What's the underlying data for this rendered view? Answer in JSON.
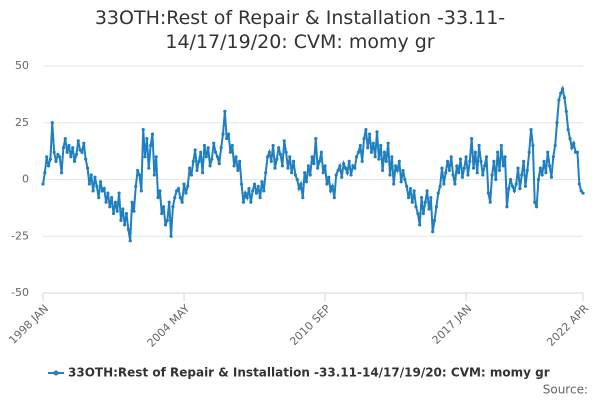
{
  "chart_data": {
    "type": "line",
    "title": "33OTH:Rest of Repair & Installation -33.11-14/17/19/20: CVM: momy gr",
    "source_label": "Source:",
    "categories": [
      "1998 JAN",
      null,
      null,
      null,
      null,
      null,
      null,
      null,
      null,
      null,
      null,
      null,
      null,
      null,
      null,
      null,
      null,
      null,
      null,
      null,
      null,
      null,
      null,
      null,
      null,
      null,
      null,
      null,
      null,
      null,
      null,
      null,
      null,
      null,
      null,
      null,
      null,
      null,
      null,
      null,
      null,
      null,
      null,
      null,
      null,
      null,
      null,
      null,
      null,
      null,
      null,
      null,
      null,
      null,
      null,
      null,
      null,
      null,
      null,
      null,
      null,
      null,
      null,
      null,
      null,
      null,
      null,
      null,
      null,
      null,
      null,
      null,
      null,
      null,
      null,
      null,
      "2004 MAY",
      null,
      null,
      null,
      null,
      null,
      null,
      null,
      null,
      null,
      null,
      null,
      null,
      null,
      null,
      null,
      null,
      null,
      null,
      null,
      null,
      null,
      null,
      null,
      null,
      null,
      null,
      null,
      null,
      null,
      null,
      null,
      null,
      null,
      null,
      null,
      null,
      null,
      null,
      null,
      null,
      null,
      null,
      null,
      null,
      null,
      null,
      null,
      null,
      null,
      null,
      null,
      null,
      null,
      null,
      null,
      null,
      null,
      null,
      null,
      null,
      null,
      null,
      null,
      null,
      null,
      null,
      null,
      null,
      null,
      null,
      null,
      null,
      null,
      null,
      null,
      "2010 SEP",
      null,
      null,
      null,
      null,
      null,
      null,
      null,
      null,
      null,
      null,
      null,
      null,
      null,
      null,
      null,
      null,
      null,
      null,
      null,
      null,
      null,
      null,
      null,
      null,
      null,
      null,
      null,
      null,
      null,
      null,
      null,
      null,
      null,
      null,
      null,
      null,
      null,
      null,
      null,
      null,
      null,
      null,
      null,
      null,
      null,
      null,
      null,
      null,
      null,
      null,
      null,
      null,
      null,
      null,
      null,
      null,
      null,
      null,
      null,
      null,
      null,
      null,
      null,
      null,
      null,
      null,
      null,
      null,
      null,
      null,
      null,
      null,
      null,
      null,
      null,
      "2017 JAN",
      null,
      null,
      null,
      null,
      null,
      null,
      null,
      null,
      null,
      null,
      null,
      null,
      null,
      null,
      null,
      null,
      null,
      null,
      null,
      null,
      null,
      null,
      null,
      null,
      null,
      null,
      null,
      null,
      null,
      null,
      null,
      null,
      null,
      null,
      null,
      null,
      null,
      null,
      null,
      null,
      null,
      null,
      null,
      null,
      null,
      null,
      null,
      null,
      null,
      null,
      null,
      null,
      null,
      null,
      null,
      null,
      null,
      null,
      null,
      null,
      null,
      null,
      "2022 APR"
    ],
    "series": [
      {
        "name": "33OTH:Rest of Repair & Installation -33.11-14/17/19/20: CVM: momy gr",
        "color": "#1f7fbf",
        "values": [
          -2,
          3,
          10,
          6,
          9,
          25,
          12,
          8,
          11,
          10,
          3,
          14,
          18,
          12,
          15,
          10,
          14,
          8,
          11,
          17,
          13,
          12,
          16,
          9,
          5,
          -2,
          2,
          -5,
          1,
          -3,
          -8,
          -1,
          -5,
          -4,
          -10,
          -6,
          -12,
          -8,
          -15,
          -10,
          -14,
          -6,
          -18,
          -13,
          -20,
          -15,
          -22,
          -27,
          -10,
          -14,
          -3,
          4,
          2,
          -5,
          22,
          10,
          18,
          5,
          15,
          20,
          2,
          10,
          -8,
          -5,
          -15,
          -12,
          -20,
          -18,
          -10,
          -25,
          -12,
          -8,
          -5,
          -4,
          -8,
          -10,
          -2,
          -6,
          -3,
          5,
          2,
          8,
          13,
          4,
          8,
          12,
          3,
          15,
          10,
          14,
          6,
          9,
          16,
          12,
          10,
          7,
          14,
          20,
          30,
          18,
          20,
          12,
          15,
          6,
          10,
          4,
          8,
          -2,
          -10,
          -6,
          -8,
          -4,
          -10,
          -5,
          -2,
          -6,
          -3,
          -8,
          -1,
          -5,
          3,
          10,
          12,
          8,
          15,
          5,
          9,
          14,
          11,
          6,
          17,
          12,
          5,
          10,
          3,
          8,
          2,
          0,
          -4,
          -2,
          -8,
          3,
          -1,
          6,
          2,
          10,
          7,
          18,
          5,
          8,
          12,
          3,
          6,
          -2,
          1,
          -5,
          -3,
          -8,
          2,
          4,
          6,
          1,
          7,
          5,
          3,
          8,
          2,
          6,
          5,
          10,
          12,
          15,
          8,
          18,
          22,
          14,
          20,
          12,
          16,
          10,
          21,
          9,
          15,
          4,
          12,
          8,
          16,
          2,
          10,
          -2,
          6,
          4,
          8,
          -1,
          4,
          0,
          -3,
          -8,
          -4,
          -10,
          -5,
          -12,
          -15,
          -20,
          -8,
          -15,
          -10,
          -5,
          -13,
          -8,
          -23,
          -18,
          -12,
          -6,
          -3,
          5,
          -2,
          3,
          8,
          4,
          10,
          2,
          -2,
          6,
          3,
          9,
          1,
          5,
          10,
          2,
          8,
          18,
          5,
          12,
          3,
          15,
          8,
          2,
          6,
          10,
          -6,
          -10,
          2,
          8,
          0,
          12,
          4,
          15,
          6,
          10,
          -12,
          -4,
          0,
          -3,
          -5,
          -2,
          5,
          -4,
          2,
          8,
          -3,
          4,
          12,
          22,
          15,
          -10,
          -12,
          0,
          5,
          2,
          8,
          3,
          12,
          6,
          1,
          10,
          15,
          25,
          35,
          38,
          40,
          36,
          30,
          22,
          18,
          14,
          16,
          12,
          12,
          -2,
          -5,
          -6
        ]
      }
    ],
    "ylim": [
      -50,
      50
    ],
    "yticks": [
      -50,
      -25,
      0,
      25,
      50
    ],
    "grid": true
  }
}
